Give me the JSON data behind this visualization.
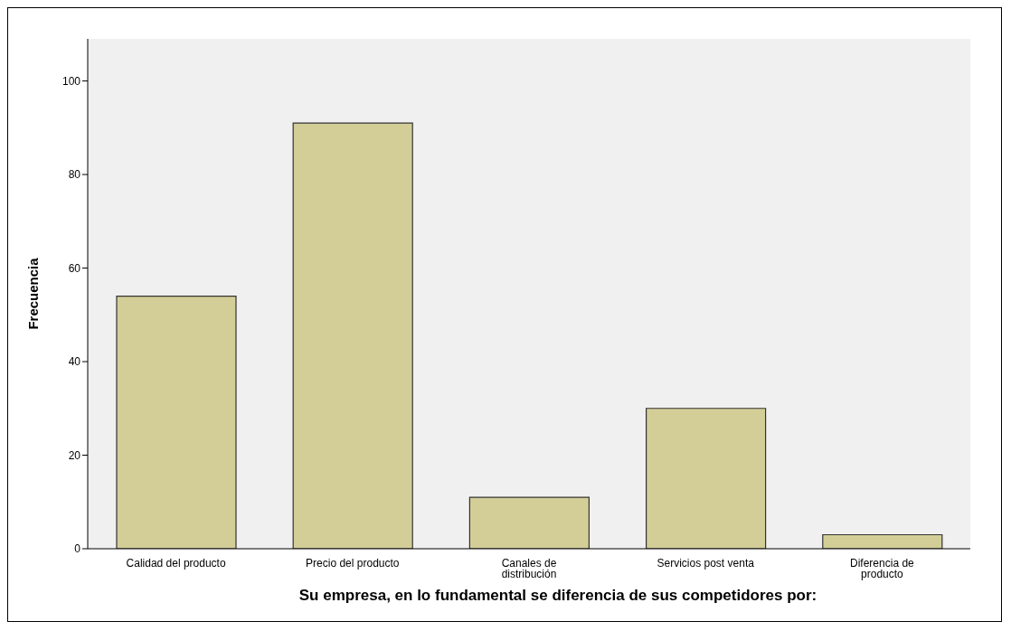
{
  "chart_data": {
    "type": "bar",
    "xlabel": "Su empresa, en lo fundamental se diferencia de sus competidores por:",
    "ylabel": "Frecuencia",
    "categories": [
      "Calidad del producto",
      "Precio del producto",
      "Canales de distribución",
      "Servicios post venta",
      "Diferencia de producto"
    ],
    "values": [
      54,
      91,
      11,
      30,
      3
    ],
    "color": "#d3ce97",
    "ylim": [
      0,
      109
    ],
    "yticks": [
      0,
      20,
      40,
      60,
      80,
      100
    ]
  }
}
